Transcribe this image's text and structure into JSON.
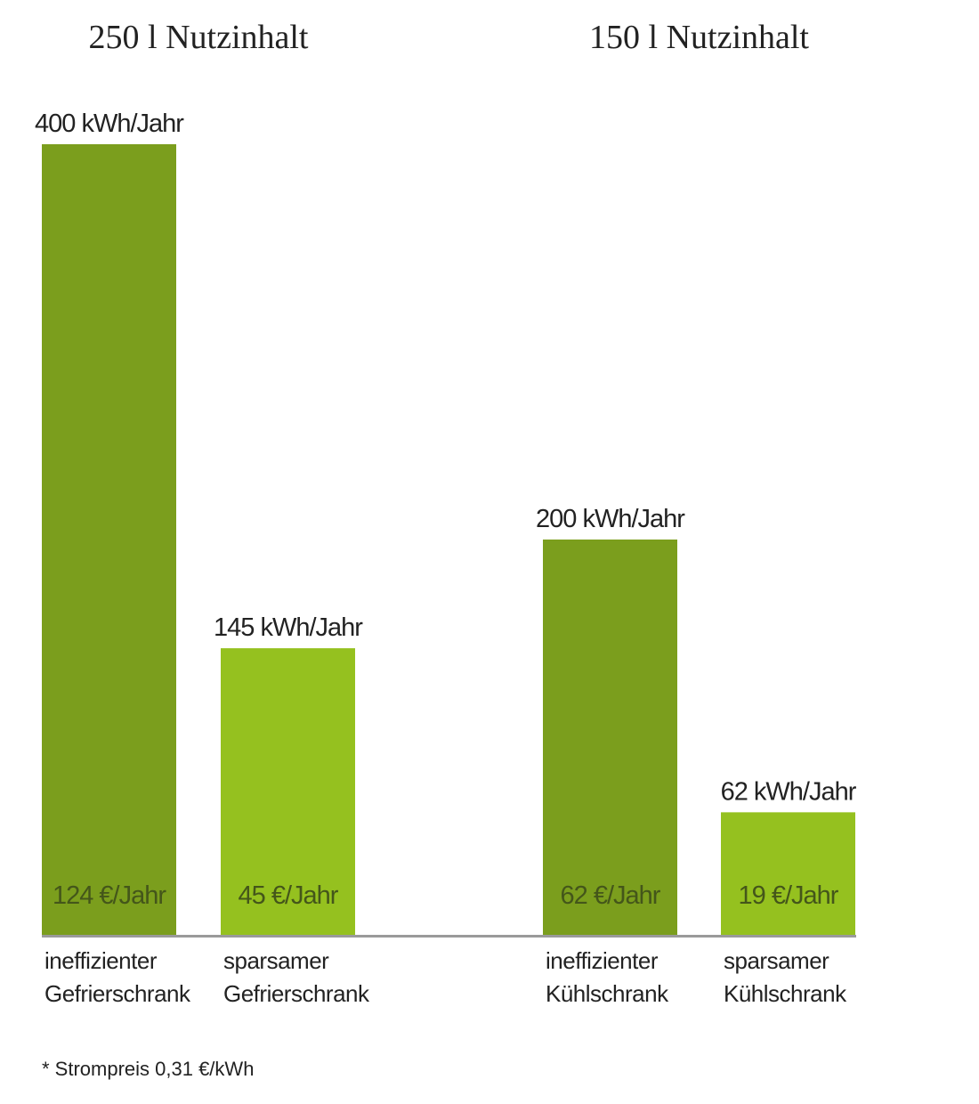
{
  "chart_data": {
    "type": "bar",
    "group_titles": [
      "250 l Nutzinhalt",
      "150 l Nutzinhalt"
    ],
    "categories": [
      [
        "ineffizienter",
        "Gefrierschrank"
      ],
      [
        "sparsamer",
        "Gefrierschrank"
      ],
      [
        "ineffizienter",
        "Kühlschrank"
      ],
      [
        "sparsamer",
        "Kühlschrank"
      ]
    ],
    "values": [
      400,
      145,
      200,
      62
    ],
    "value_labels": [
      "400 kWh/Jahr",
      "145 kWh/Jahr",
      "200 kWh/Jahr",
      "62 kWh/Jahr"
    ],
    "costs": [
      124,
      45,
      62,
      19
    ],
    "cost_labels": [
      "124 €/Jahr",
      "45 €/Jahr",
      "62 €/Jahr",
      "19 €/Jahr"
    ],
    "colors": [
      "#7b9e1d",
      "#95c11f",
      "#7b9e1d",
      "#95c11f"
    ],
    "ylim": [
      0,
      400
    ],
    "footnote": "* Strompreis 0,31 €/kWh"
  }
}
